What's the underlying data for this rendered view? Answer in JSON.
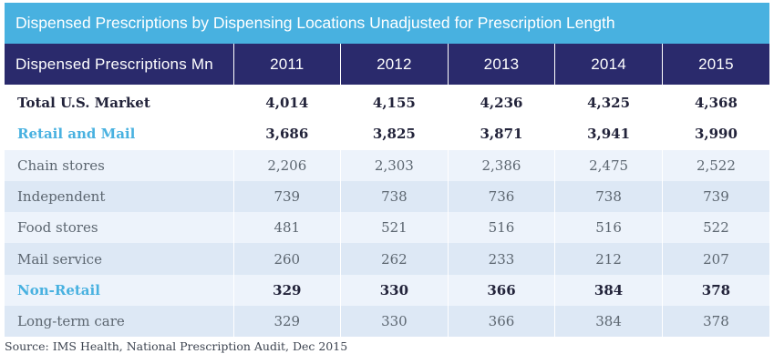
{
  "title": "Dispensed Prescriptions by Dispensing Locations Unadjusted for Prescription Length",
  "header": {
    "label": "Dispensed Prescriptions Mn",
    "years": [
      "2011",
      "2012",
      "2013",
      "2014",
      "2015"
    ]
  },
  "rows": [
    {
      "label": "Total U.S. Market",
      "values": [
        "4,014",
        "4,155",
        "4,236",
        "4,325",
        "4,368"
      ]
    },
    {
      "label": "Retail and Mail",
      "values": [
        "3,686",
        "3,825",
        "3,871",
        "3,941",
        "3,990"
      ]
    },
    {
      "label": "Chain stores",
      "values": [
        "2,206",
        "2,303",
        "2,386",
        "2,475",
        "2,522"
      ]
    },
    {
      "label": "Independent",
      "values": [
        "739",
        "738",
        "736",
        "738",
        "739"
      ]
    },
    {
      "label": "Food stores",
      "values": [
        "481",
        "521",
        "516",
        "516",
        "522"
      ]
    },
    {
      "label": "Mail service",
      "values": [
        "260",
        "262",
        "233",
        "212",
        "207"
      ]
    },
    {
      "label": "Non-Retail",
      "values": [
        "329",
        "330",
        "366",
        "384",
        "378"
      ]
    },
    {
      "label": "Long-term care",
      "values": [
        "329",
        "330",
        "366",
        "384",
        "378"
      ]
    }
  ],
  "source": "Source: IMS Health, National Prescription Audit, Dec 2015",
  "colors": {
    "title_bg": "#48b1e0",
    "header_bg": "#2a2a6c",
    "accent_text": "#48b1e0",
    "row_light": "#edf3fb",
    "row_mid": "#dde8f5"
  }
}
